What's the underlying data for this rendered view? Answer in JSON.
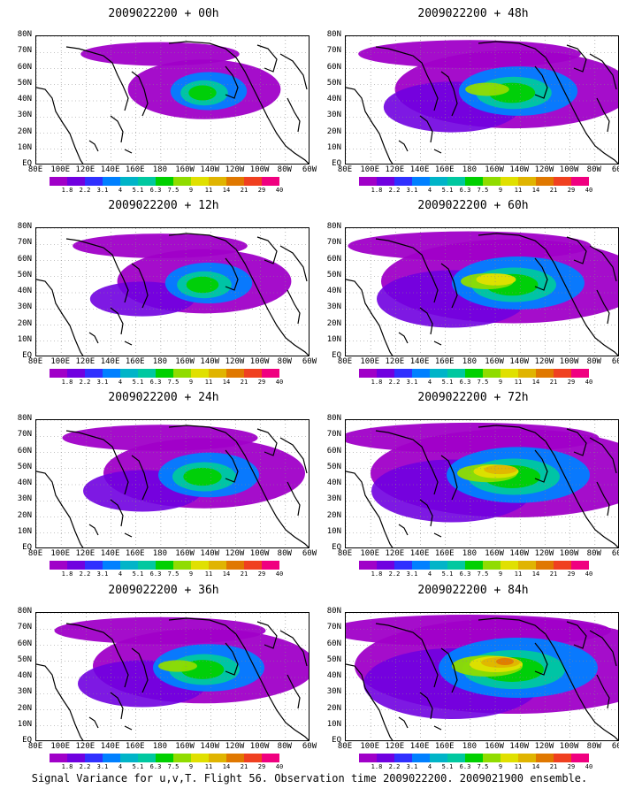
{
  "panels": [
    {
      "title": "2009022200 + 00h",
      "level": 0.22
    },
    {
      "title": "2009022200 + 48h",
      "level": 0.62
    },
    {
      "title": "2009022200 + 12h",
      "level": 0.32
    },
    {
      "title": "2009022200 + 60h",
      "level": 0.75
    },
    {
      "title": "2009022200 + 24h",
      "level": 0.45
    },
    {
      "title": "2009022200 + 72h",
      "level": 0.85
    },
    {
      "title": "2009022200 + 36h",
      "level": 0.55
    },
    {
      "title": "2009022200 + 84h",
      "level": 1.0
    }
  ],
  "lat_labels": [
    "80N",
    "70N",
    "60N",
    "50N",
    "40N",
    "30N",
    "20N",
    "10N",
    "EQ"
  ],
  "lon_labels": [
    "80E",
    "100E",
    "120E",
    "140E",
    "160E",
    "180",
    "160W",
    "140W",
    "120W",
    "100W",
    "80W",
    "60W"
  ],
  "colorbar": {
    "colors": [
      "#a000c8",
      "#7000e0",
      "#3030ff",
      "#0080ff",
      "#00b4c8",
      "#00c8a0",
      "#00d000",
      "#90dc00",
      "#e0e000",
      "#e0b400",
      "#e07800",
      "#f04020",
      "#f00080"
    ],
    "labels": [
      "1.8",
      "2.2",
      "3.1",
      "4",
      "5.1",
      "6.3",
      "7.5",
      "9",
      "11",
      "14",
      "21",
      "29",
      "40"
    ]
  },
  "caption": "Signal Variance for u,v,T. Flight 56. Observation time 2009022200. 2009021900 ensemble."
}
